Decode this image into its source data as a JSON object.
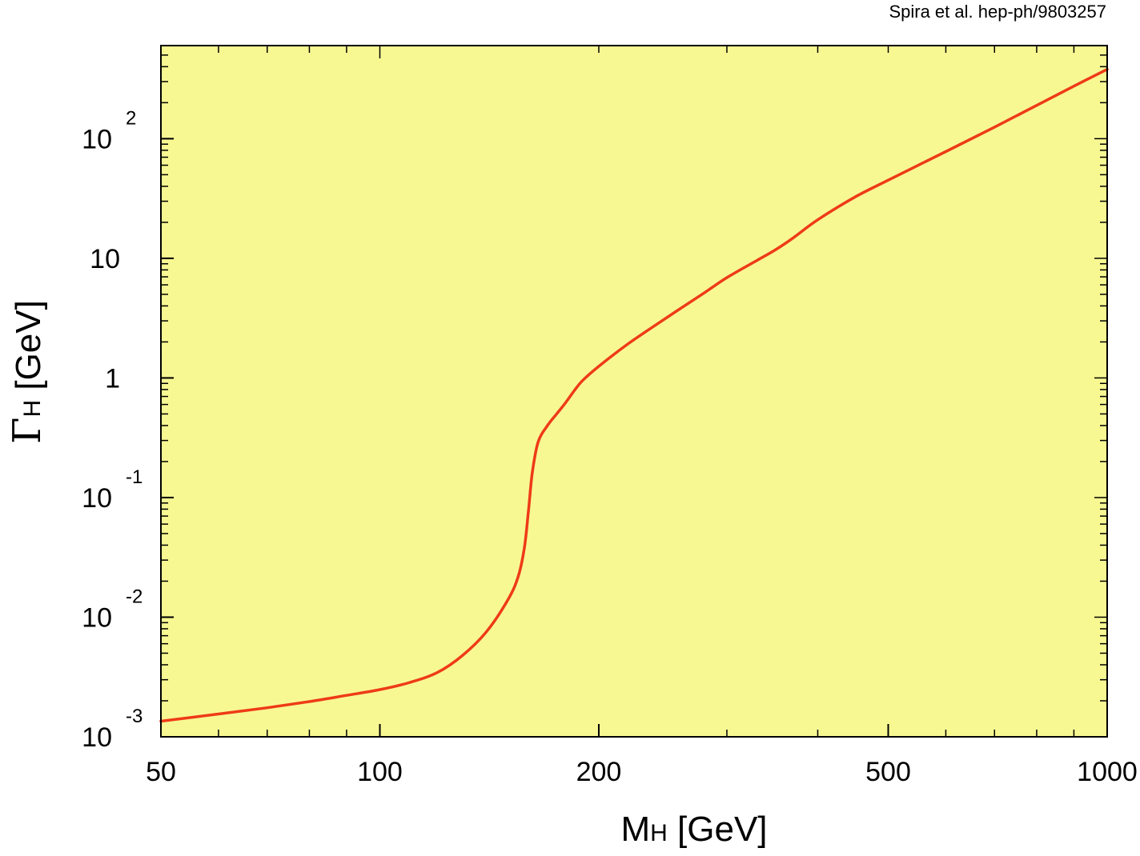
{
  "citation": "Spira et al. hep-ph/9803257",
  "chart_data": {
    "type": "line",
    "xscale": "log",
    "yscale": "log",
    "xlim": [
      50,
      1000
    ],
    "ylim": [
      0.001,
      600
    ],
    "xticks": [
      50,
      100,
      200,
      500,
      1000
    ],
    "xlabels": [
      "50",
      "100",
      "200",
      "500",
      "1000"
    ],
    "yticks": [
      {
        "value": 0.001,
        "base": "10",
        "exp": "-3"
      },
      {
        "value": 0.01,
        "base": "10",
        "exp": "-2"
      },
      {
        "value": 0.1,
        "base": "10",
        "exp": "-1"
      },
      {
        "value": 1,
        "base": "1",
        "exp": ""
      },
      {
        "value": 10,
        "base": "10",
        "exp": ""
      },
      {
        "value": 100,
        "base": "10",
        "exp": "2"
      }
    ],
    "xlabel": {
      "main": "M",
      "sub": "H",
      "unit": " [GeV]"
    },
    "ylabel": {
      "main": "Γ",
      "sub": "H",
      "unit": " [GeV]"
    },
    "grid": false,
    "colors": {
      "background": "#f8f893",
      "line": "#ee3b17",
      "axis": "#000000"
    },
    "series": [
      {
        "x": [
          50,
          60,
          70,
          80,
          90,
          100,
          110,
          120,
          130,
          140,
          150,
          155,
          158,
          160,
          162,
          165,
          170,
          175,
          180,
          185,
          190,
          200,
          220,
          250,
          280,
          300,
          330,
          350,
          370,
          400,
          450,
          500,
          600,
          700,
          800,
          900,
          1000
        ],
        "y": [
          0.00135,
          0.00155,
          0.00175,
          0.00197,
          0.00222,
          0.00248,
          0.00285,
          0.00345,
          0.0048,
          0.0075,
          0.014,
          0.022,
          0.038,
          0.075,
          0.16,
          0.29,
          0.4,
          0.5,
          0.62,
          0.78,
          0.95,
          1.25,
          1.95,
          3.3,
          5.2,
          6.9,
          9.6,
          11.8,
          14.8,
          21.0,
          32.5,
          45.0,
          78.0,
          125.0,
          190.0,
          275.0,
          380.0
        ]
      }
    ]
  }
}
